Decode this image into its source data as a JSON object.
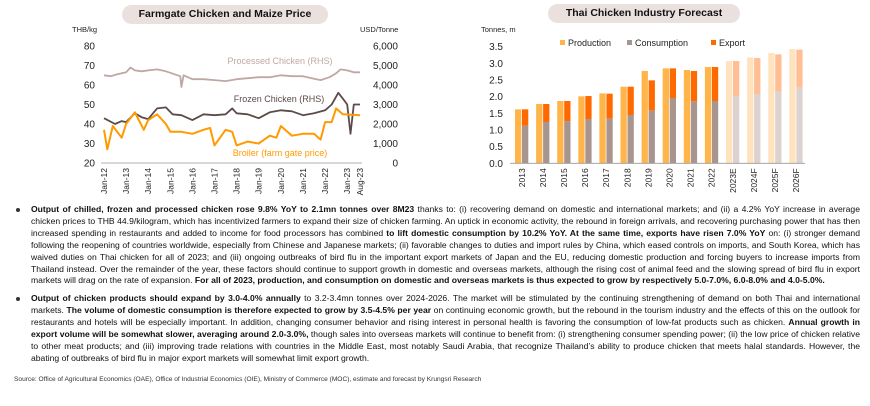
{
  "colors": {
    "processed": "#BFA8A3",
    "frozen": "#5B4B49",
    "broiler": "#FF9A00",
    "production": "#FFB54A",
    "consumption": "#A8958F",
    "export": "#FF6A00",
    "production_f": "#FFE3BE",
    "consumption_f": "#DCD2CF",
    "export_f": "#FFBE93"
  },
  "chart_data": [
    {
      "type": "line",
      "title": "Farmgate Chicken and Maize Price",
      "ylabel_left": "THB/kg",
      "ylabel_right": "USD/Tonne",
      "ylim_left": [
        20,
        80
      ],
      "yticks_left": [
        "20",
        "30",
        "40",
        "50",
        "60",
        "70",
        "80"
      ],
      "ylim_right": [
        0,
        6000
      ],
      "yticks_right": [
        "0",
        "1,000",
        "2,000",
        "3,000",
        "4,000",
        "5,000",
        "6,000"
      ],
      "xlim": [
        2012,
        2023.58
      ],
      "xticks": [
        {
          "x": 2012,
          "label": "Jan-12"
        },
        {
          "x": 2013,
          "label": "Jan-13"
        },
        {
          "x": 2014,
          "label": "Jan-14"
        },
        {
          "x": 2015,
          "label": "Jan-15"
        },
        {
          "x": 2016,
          "label": "Jan-16"
        },
        {
          "x": 2017,
          "label": "Jan-17"
        },
        {
          "x": 2018,
          "label": "Jan-18"
        },
        {
          "x": 2019,
          "label": "Jan-19"
        },
        {
          "x": 2020,
          "label": "Jan-20"
        },
        {
          "x": 2021,
          "label": "Jan-21"
        },
        {
          "x": 2022,
          "label": "Jan-22"
        },
        {
          "x": 2023,
          "label": "Jan-23"
        },
        {
          "x": 2023.58,
          "label": "Aug-23"
        }
      ],
      "series": [
        {
          "name": "Processed Chicken (RHS)",
          "axis": "right",
          "color_key": "processed",
          "x": [
            2012,
            2012.3,
            2012.6,
            2013,
            2013.2,
            2013.4,
            2013.7,
            2014,
            2014.4,
            2014.8,
            2015.2,
            2015.45,
            2015.5,
            2015.6,
            2016,
            2016.5,
            2017,
            2017.5,
            2018,
            2018.5,
            2019,
            2019.5,
            2020,
            2020.5,
            2021,
            2021.4,
            2021.8,
            2022.2,
            2022.5,
            2022.7,
            2023,
            2023.3,
            2023.58
          ],
          "y": [
            4500,
            4450,
            4550,
            4650,
            4900,
            4750,
            4700,
            4750,
            4800,
            4700,
            4550,
            4450,
            3900,
            4500,
            4300,
            4300,
            4250,
            4200,
            4300,
            4350,
            4400,
            4400,
            4500,
            4450,
            4450,
            4350,
            4250,
            4400,
            4600,
            4800,
            4750,
            4650,
            4650
          ]
        },
        {
          "name": "Frozen Chicken (RHS)",
          "axis": "right",
          "color_key": "frozen",
          "x": [
            2012,
            2012.5,
            2012.8,
            2013,
            2013.4,
            2013.7,
            2014,
            2014.4,
            2014.8,
            2015.1,
            2015.5,
            2016,
            2016.5,
            2017,
            2017.5,
            2017.8,
            2018,
            2018.5,
            2019,
            2019.5,
            2020,
            2020.5,
            2021,
            2021.5,
            2022,
            2022.3,
            2022.6,
            2022.8,
            2023,
            2023.15,
            2023.3,
            2023.58
          ],
          "y": [
            2300,
            2000,
            2150,
            2100,
            2550,
            2350,
            2250,
            2800,
            2850,
            2500,
            2450,
            2200,
            2500,
            2450,
            2500,
            2800,
            2550,
            2500,
            2300,
            2600,
            2700,
            2650,
            2450,
            2550,
            2700,
            3000,
            3600,
            3300,
            3000,
            1500,
            3000,
            3000
          ]
        },
        {
          "name": "Broiler (farm gate price)",
          "axis": "left",
          "color_key": "broiler",
          "x": [
            2012,
            2012.15,
            2012.4,
            2012.8,
            2013,
            2013.4,
            2013.8,
            2014,
            2014.4,
            2014.8,
            2015,
            2015.5,
            2016,
            2016.5,
            2016.8,
            2017,
            2017.5,
            2017.8,
            2018,
            2018.5,
            2019,
            2019.5,
            2019.8,
            2020,
            2020.5,
            2021,
            2021.5,
            2021.8,
            2022,
            2022.3,
            2022.5,
            2022.8,
            2023.58
          ],
          "y": [
            37,
            27,
            39,
            33,
            40,
            46,
            37,
            42,
            45,
            40,
            36,
            36,
            35,
            37,
            38,
            29,
            37,
            36,
            29,
            31,
            30,
            34,
            33,
            39,
            34,
            35,
            35,
            32,
            41,
            41,
            48,
            45,
            44.5
          ]
        }
      ]
    },
    {
      "type": "bar",
      "title": "Thai Chicken Industry Forecast",
      "ylabel": "Tonnes, m",
      "ylim": [
        0,
        3.5
      ],
      "yticks": [
        "0.0",
        "0.5",
        "1.0",
        "1.5",
        "2.0",
        "2.5",
        "3.0",
        "3.5"
      ],
      "legend": [
        "Production",
        "Consumption",
        "Export"
      ],
      "legend_position": "top",
      "categories": [
        "2013",
        "2014",
        "2015",
        "2016",
        "2017",
        "2018",
        "2019",
        "2020",
        "2021",
        "2022",
        "2023E",
        "2024F",
        "2025F",
        "2026F"
      ],
      "forecast_from_index": 10,
      "series": [
        {
          "name": "Production",
          "values": [
            1.62,
            1.78,
            1.87,
            2.01,
            2.1,
            2.3,
            2.77,
            2.85,
            2.8,
            2.89,
            3.07,
            3.18,
            3.31,
            3.43
          ]
        },
        {
          "name": "Consumption",
          "values": [
            1.13,
            1.24,
            1.26,
            1.33,
            1.34,
            1.45,
            1.58,
            1.96,
            1.86,
            1.87,
            2.0,
            2.08,
            2.15,
            2.27
          ]
        },
        {
          "name": "Export",
          "values": [
            0.49,
            0.54,
            0.61,
            0.69,
            0.75,
            0.85,
            0.91,
            0.89,
            0.91,
            1.02,
            1.07,
            1.08,
            1.12,
            1.14
          ]
        }
      ]
    }
  ],
  "bullets": [
    [
      {
        "b": true,
        "t": "Output of chilled, frozen and processed chicken rose 9.8% YoY to 2.1mn tonnes over 8M23"
      },
      {
        "b": false,
        "t": " thanks to: (i) recovering demand on domestic and international markets; and (ii) a 4.2% YoY increase in average chicken prices to THB 44.9/kilogram, which has incentivized farmers to expand their size of chicken farming. An uptick in economic activity, the rebound in foreign arrivals, and recovering purchasing power that has then increased spending in restaurants and added to income for food processors has combined "
      },
      {
        "b": true,
        "t": "to lift domestic consumption by 10.2% YoY. At the same time, exports have risen 7.0% YoY"
      },
      {
        "b": false,
        "t": " on: (i) stronger demand following the reopening of countries worldwide, especially from Chinese and Japanese markets; (ii) favorable changes to duties and import rules by China, which eased controls on imports, and South Korea, which has waived duties on Thai chicken for all of 2023; and (iii) ongoing outbreaks of bird flu in the important export markets of Japan and the EU, reducing domestic production and forcing buyers to increase imports from Thailand instead. Over the remainder of the year, these factors should continue to support growth in domestic and overseas markets, although the rising cost of animal feed and the slowing spread of bird flu in export markets will drag on the rate of expansion. "
      },
      {
        "b": true,
        "t": "For all of 2023, production, and consumption on domestic and overseas markets is thus expected to grow by respectively 5.0-7.0%, 6.0-8.0% and 4.0-5.0%."
      }
    ],
    [
      {
        "b": true,
        "t": "Output of chicken products should expand by 3.0-4.0% annually"
      },
      {
        "b": false,
        "t": " to 3.2-3.4mn tonnes over 2024-2026. The market will be stimulated by the continuing strengthening of demand on both Thai and international markets. "
      },
      {
        "b": true,
        "t": "The volume of domestic consumption is therefore expected to grow by 3.5-4.5% per year"
      },
      {
        "b": false,
        "t": " on continuing economic growth, but the rebound in the tourism industry and the effects of this on the outlook for restaurants and hotels will be especially important. In addition, changing consumer behavior and rising interest in personal health is favoring the consumption of low-fat products such as chicken. "
      },
      {
        "b": true,
        "t": "Annual growth in export volume will be somewhat slower, averaging around 2.0-3.0%,"
      },
      {
        "b": false,
        "t": " though sales into overseas markets will continue to benefit from: (i) strengthening consumer spending power; (ii) the low price of chicken relative to other meat products; and (iii) improving trade relations with countries in the Middle East, most notably Saudi Arabia, that recognize Thailand’s ability to produce chicken that meets halal standards. However, the abating of outbreaks of bird flu in major export markets will somewhat limit export growth."
      }
    ]
  ],
  "source": "Source: Office of Agricultural Economics (OAE), Office of Industrial Economics (OIE), Ministry of Commerce (MOC), estimate and forecast by Krungsri Research"
}
